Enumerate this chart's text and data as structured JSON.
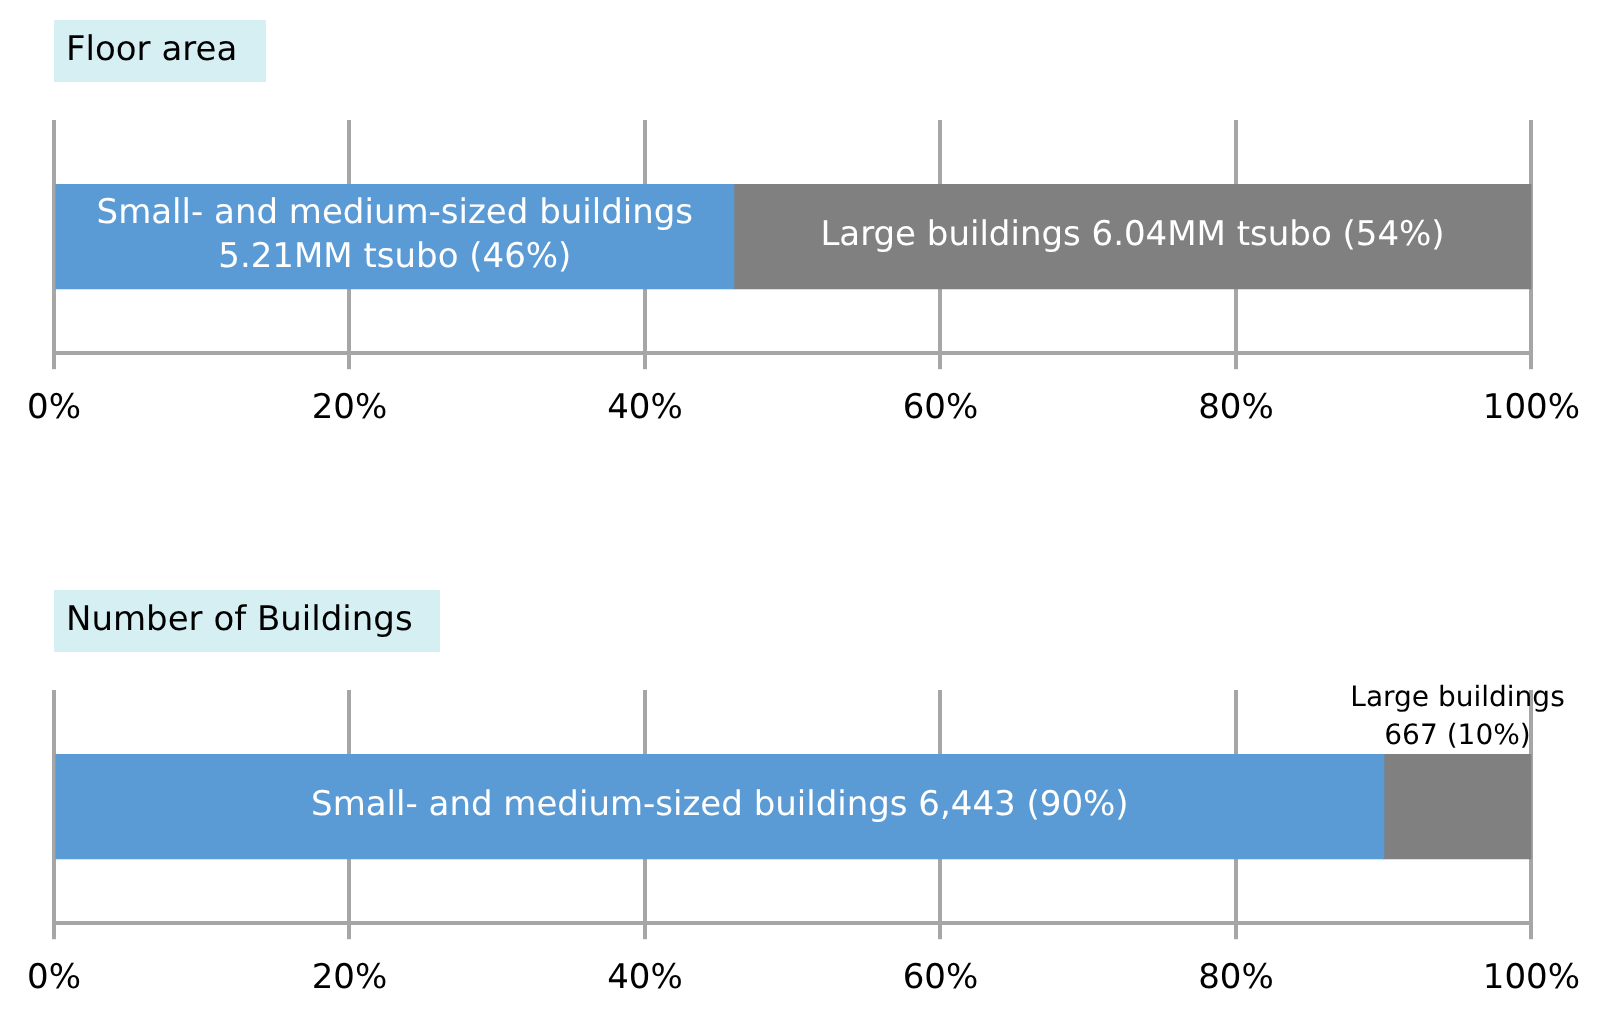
{
  "chart_data": [
    {
      "type": "bar",
      "title": "Floor area",
      "orientation": "horizontal",
      "stacked": true,
      "categories": [
        null
      ],
      "series": [
        {
          "color": "#5b9bd5",
          "values": [
            46
          ],
          "value_labels": [
            "Small- and medium-sized buildings\n5.21MM tsubo (46%)"
          ]
        },
        {
          "color": "#808080",
          "values": [
            54
          ],
          "value_labels": [
            "Large buildings 6.04MM tsubo (54%)"
          ]
        }
      ],
      "xlim": [
        0,
        100
      ],
      "xticks": [
        {
          "value": 0,
          "label": "0%"
        },
        {
          "value": 20,
          "label": "20%"
        },
        {
          "value": 40,
          "label": "40%"
        },
        {
          "value": 60,
          "label": "60%"
        },
        {
          "value": 80,
          "label": "80%"
        },
        {
          "value": 100,
          "label": "100%"
        }
      ],
      "grid": "x",
      "tick_labels": "x"
    },
    {
      "type": "bar",
      "title": "Number of Buildings",
      "orientation": "horizontal",
      "stacked": true,
      "categories": [
        null
      ],
      "series": [
        {
          "color": "#5b9bd5",
          "values": [
            90
          ],
          "value_labels": [
            "Small- and medium-sized buildings 6,443 (90%)"
          ]
        },
        {
          "color": "#808080",
          "values": [
            10
          ]
        }
      ],
      "annotations": [
        "Large buildings\n667 (10%)"
      ],
      "xlim": [
        0,
        100
      ],
      "xticks": [
        {
          "value": 0,
          "label": "0%"
        },
        {
          "value": 20,
          "label": "20%"
        },
        {
          "value": 40,
          "label": "40%"
        },
        {
          "value": 60,
          "label": "60%"
        },
        {
          "value": 80,
          "label": "80%"
        },
        {
          "value": 100,
          "label": "100%"
        }
      ],
      "grid": "x",
      "tick_labels": "x"
    }
  ]
}
